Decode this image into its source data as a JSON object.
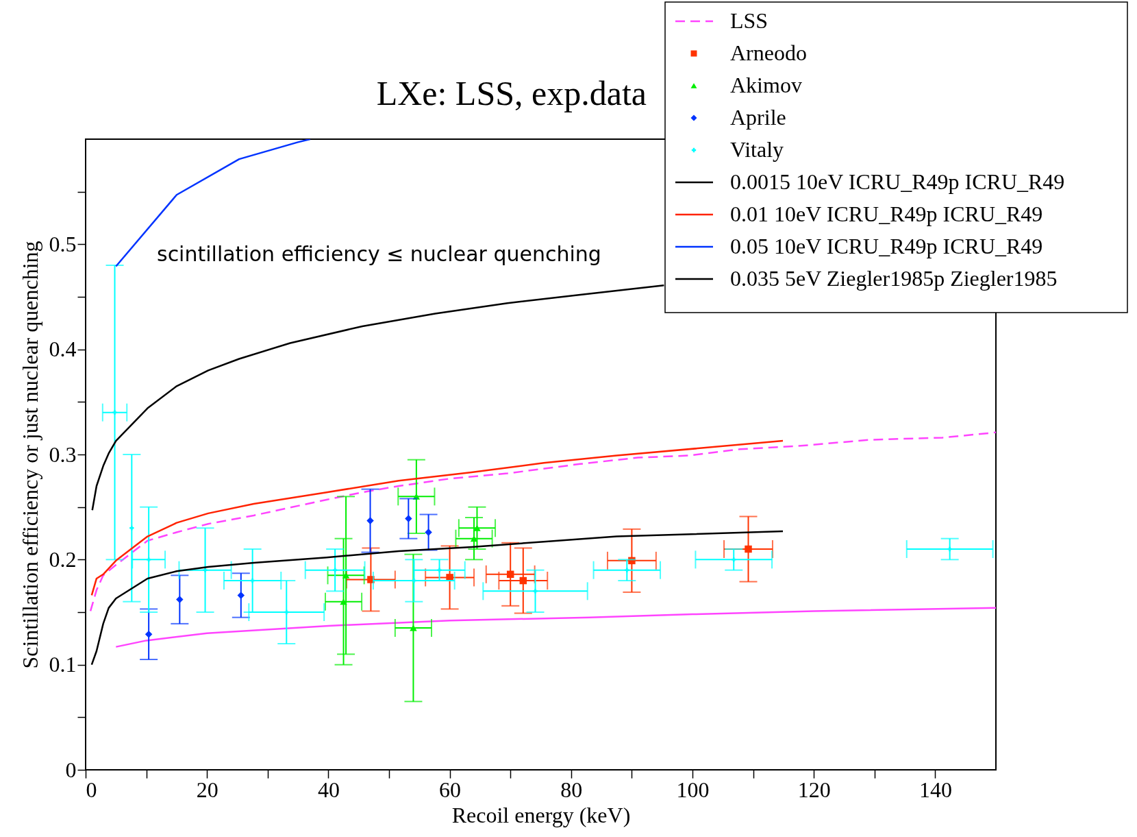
{
  "chart_data": {
    "type": "line",
    "title": "LXe:  LSS, exp.data",
    "xlabel": "Recoil energy (keV)",
    "ylabel": "Scintillation efficiency or just nuclear quenching",
    "annotations": [
      "scintillation efficiency ≤ nuclear quenching"
    ],
    "xlim": [
      0,
      150
    ],
    "ylim": [
      0,
      0.6
    ],
    "xticks": [
      0,
      {
        "value": 10,
        "label": null
      },
      20,
      {
        "value": 30,
        "label": null
      },
      40,
      {
        "value": 50,
        "label": null
      },
      60,
      {
        "value": 70,
        "label": null
      },
      80,
      {
        "value": 90,
        "label": null
      },
      100,
      {
        "value": 110,
        "label": null
      },
      120,
      {
        "value": 130,
        "label": null
      },
      140
    ],
    "yticks": [
      0,
      {
        "value": 0.05,
        "label": null
      },
      0.1,
      {
        "value": 0.15,
        "label": null
      },
      0.2,
      {
        "value": 0.25,
        "label": null
      },
      0.3,
      {
        "value": 0.35,
        "label": null
      },
      0.4,
      {
        "value": 0.45,
        "label": null
      },
      0.5,
      {
        "value": 0.55,
        "label": null
      }
    ],
    "grid": false,
    "legend": "top right",
    "series": [
      {
        "name": "LSS",
        "color": "#ff44ff",
        "line_style": "dashed",
        "x": [
          0.8,
          1.8,
          2.9,
          5,
          10.2,
          15,
          20.2,
          27.7,
          39.7,
          45.6,
          51.6,
          60,
          69.5,
          81.5,
          91,
          99.4,
          107.8,
          117.3,
          129.3,
          141.2,
          150
        ],
        "values": [
          0.151,
          0.171,
          0.185,
          0.195,
          0.218,
          0.226,
          0.234,
          0.242,
          0.257,
          0.264,
          0.27,
          0.277,
          0.282,
          0.291,
          0.297,
          0.299,
          0.305,
          0.308,
          0.314,
          0.316,
          0.321
        ]
      },
      {
        "color": "#ff44ff",
        "line_style": "solid",
        "x": [
          5,
          10,
          20,
          40,
          60,
          83,
          100,
          120,
          150
        ],
        "values": [
          0.117,
          0.123,
          0.13,
          0.137,
          0.142,
          0.145,
          0.148,
          0.151,
          0.154
        ]
      },
      {
        "name": "Arneodo",
        "type": "scatter",
        "color": "#ff3300",
        "marker": "square",
        "x": [
          47,
          60,
          70,
          72.1,
          90,
          109.2
        ],
        "values": [
          0.181,
          0.183,
          0.186,
          0.18,
          0.199,
          0.21
        ],
        "errors": [
          0.03,
          0.03,
          0.03,
          0.031,
          0.03,
          0.031
        ],
        "xerrors": [
          4,
          4,
          4,
          4,
          4,
          4
        ]
      },
      {
        "name": "Akimov",
        "type": "scatter",
        "color": "#00ee00",
        "marker": "triangle",
        "x": [
          42.9,
          42.5,
          54.5,
          54,
          64.5,
          64
        ],
        "values": [
          0.185,
          0.16,
          0.26,
          0.135,
          0.23,
          0.22
        ],
        "errors": [
          0.075,
          0.06,
          0.035,
          0.07,
          0.02,
          0.02
        ],
        "xerrors": [
          3,
          3,
          3,
          3,
          3,
          3
        ]
      },
      {
        "name": "Aprile",
        "type": "scatter",
        "color": "#0033ff",
        "marker": "diamond",
        "x": [
          10.4,
          15.5,
          25.6,
          46.9,
          53.2,
          56.5
        ],
        "values": [
          0.129,
          0.162,
          0.166,
          0.237,
          0.239,
          0.226
        ],
        "errors": [
          0.024,
          0.023,
          0.021,
          0.03,
          0.019,
          0.017
        ]
      },
      {
        "name": "Vitaly",
        "type": "scatter",
        "color": "#00ffff",
        "marker": "cross",
        "x": [
          4.8,
          7.6,
          10.4,
          19.7,
          27.5,
          33.1,
          41.1,
          54.1,
          58.3,
          74.1,
          89.2,
          106.8,
          142.4
        ],
        "values": [
          0.34,
          0.23,
          0.2,
          0.19,
          0.18,
          0.15,
          0.19,
          0.18,
          0.19,
          0.17,
          0.19,
          0.2,
          0.21
        ],
        "errors": [
          0.14,
          0.07,
          0.05,
          0.04,
          0.03,
          0.03,
          0.02,
          0.02,
          0.01,
          0.02,
          0.01,
          0.01,
          0.01
        ],
        "xerrors": [
          2,
          null,
          2.7,
          4.3,
          4.7,
          6.2,
          4.9,
          6.7,
          4.2,
          8.6,
          5.5,
          6.3,
          7.1
        ]
      },
      {
        "name": "0.0015 10eV ICRU_R49p ICRU_R49",
        "color": "#000000",
        "line_style": "solid",
        "x": [
          1.1,
          1.8,
          2.9,
          3.8,
          5,
          10.2,
          15,
          20.2,
          25.3,
          33.7,
          45.6,
          57.6,
          69.5,
          81.5,
          95.3
        ],
        "values": [
          0.247,
          0.27,
          0.289,
          0.301,
          0.313,
          0.344,
          0.365,
          0.38,
          0.391,
          0.406,
          0.422,
          0.434,
          0.444,
          0.452,
          0.461
        ]
      },
      {
        "name": "0.01 10eV ICRU_R49p ICRU_R49",
        "color": "#ff2200",
        "line_style": "solid",
        "x": [
          1,
          1.8,
          2.9,
          5,
          10.2,
          15,
          20.2,
          27.7,
          39.7,
          51.6,
          63.6,
          75.5,
          87.5,
          114.9
        ],
        "values": [
          0.166,
          0.182,
          0.186,
          0.199,
          0.222,
          0.235,
          0.244,
          0.253,
          0.264,
          0.275,
          0.283,
          0.292,
          0.299,
          0.313
        ]
      },
      {
        "name": "0.05 10eV ICRU_R49p ICRU_R49",
        "color": "#0033ff",
        "line_style": "solid",
        "x": [
          5,
          15,
          25.3,
          34.9,
          37
        ],
        "values": [
          0.479,
          0.547,
          0.581,
          0.597,
          0.6
        ]
      },
      {
        "name": "0.035 5eV Ziegler1985p Ziegler1985",
        "color": "#000000",
        "line_style": "solid",
        "x": [
          1,
          1.8,
          2.9,
          3.8,
          5,
          10.2,
          15,
          20.2,
          27.7,
          39.7,
          51.6,
          63.6,
          75.5,
          87.5,
          114.9
        ],
        "values": [
          0.1,
          0.113,
          0.139,
          0.154,
          0.163,
          0.182,
          0.189,
          0.193,
          0.197,
          0.202,
          0.208,
          0.212,
          0.217,
          0.222,
          0.227
        ]
      }
    ]
  }
}
